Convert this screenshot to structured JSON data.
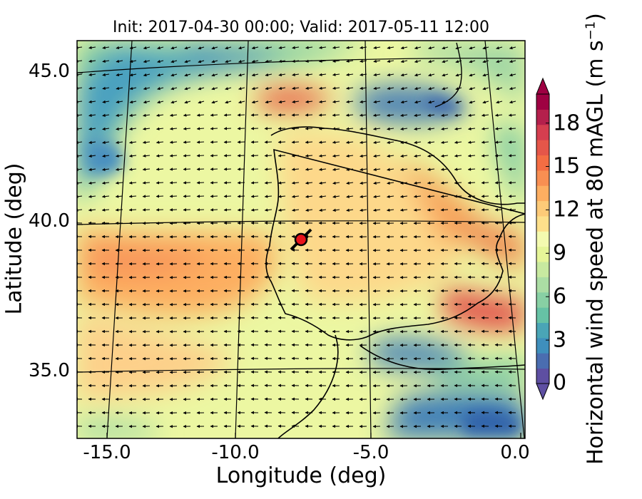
{
  "figure": {
    "title": "Init: 2017-04-30 00:00; Valid: 2017-05-11 12:00",
    "xlabel": "Longitude (deg)",
    "ylabel": "Latitude (deg)",
    "colorbar_label_main": "Horizontal wind speed at 80 mAGL (m s",
    "colorbar_label_sup": "−1",
    "colorbar_label_end": ")"
  },
  "map": {
    "type": "filled-contour wind map with wind-vector arrows",
    "region": "Iberian Peninsula and western Mediterranean",
    "lon_ticks": [
      "-15.0",
      "-10.0",
      "-5.0",
      "0.0"
    ],
    "lat_ticks": [
      "45.0",
      "40.0",
      "35.0"
    ],
    "marker": {
      "description": "red circle marker",
      "lon": -7.8,
      "lat": 39.5,
      "color": "#e8141c"
    }
  },
  "colorbar": {
    "ticks": [
      "0",
      "3",
      "6",
      "9",
      "12",
      "15",
      "18"
    ],
    "min": 0,
    "max": 20,
    "extend": "both",
    "colors": [
      "#5e4fa2",
      "#4a6db0",
      "#3f8fbc",
      "#4aa5b6",
      "#66c2a5",
      "#88d0a4",
      "#abdda4",
      "#c8e9a0",
      "#e6f598",
      "#f4fab0",
      "#fee08b",
      "#fdca78",
      "#fdae61",
      "#f88f52",
      "#f46d43",
      "#e55649",
      "#d53e4f",
      "#b4204c",
      "#9e0142"
    ]
  },
  "colors": {
    "frame": "#000000",
    "coastline": "#000000",
    "arrow": "#000000",
    "marker": "#e8141c"
  }
}
